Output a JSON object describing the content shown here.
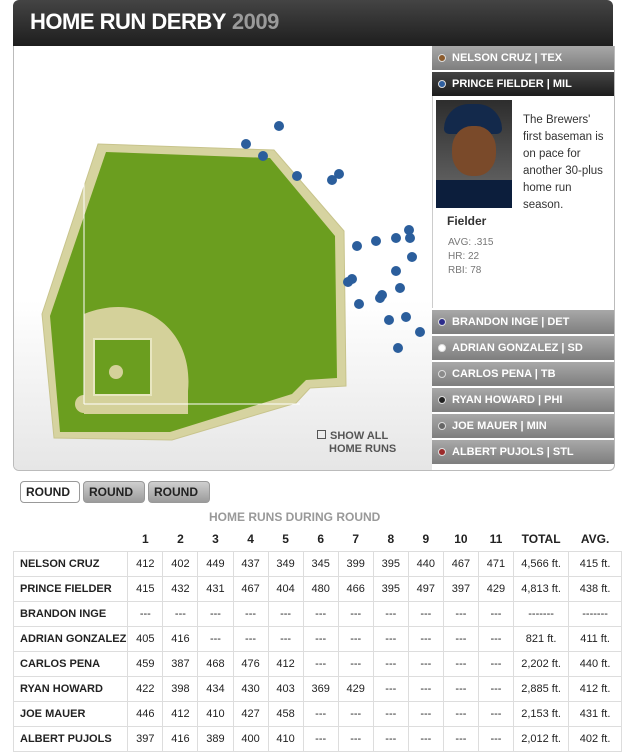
{
  "header": {
    "title": "HOME RUN DERBY",
    "year": "2009"
  },
  "show_all": {
    "line1": "SHOW ALL",
    "line2": "HOME RUNS"
  },
  "players": [
    {
      "label": "NELSON CRUZ  |  TEX",
      "color": "#8b5a2b",
      "active": false
    },
    {
      "label": "PRINCE FIELDER  |  MIL",
      "color": "#2f5f9f",
      "active": true
    },
    {
      "label": "BRANDON INGE  |  DET",
      "color": "#2c2c8c",
      "active": false
    },
    {
      "label": "ADRIAN GONZALEZ  |  SD",
      "color": "#ffffff",
      "active": false
    },
    {
      "label": "CARLOS PENA  |  TB",
      "color": "#8a8a8a",
      "active": false
    },
    {
      "label": "RYAN HOWARD  |  PHI",
      "color": "#222222",
      "active": false
    },
    {
      "label": "JOE MAUER  |  MIN",
      "color": "#666666",
      "active": false
    },
    {
      "label": "ALBERT PUJOLS  |  STL",
      "color": "#9c2a2a",
      "active": false
    }
  ],
  "selected_player": {
    "name": "Fielder",
    "avg": "AVG: .315",
    "hr": "HR: 22",
    "rbi": "RBI: 78",
    "description": "The Brewers' first baseman is on pace for another 30-plus home run season."
  },
  "rounds": [
    "ROUND",
    "ROUND",
    "ROUND"
  ],
  "colors": {
    "grass": "#6b9e1f",
    "dirt": "#d4d19a",
    "warning_track": "#d6d3a0",
    "hit_marker": "#2b5e9c"
  },
  "chart_data": {
    "type": "table",
    "title": "HOME RUNS DURING ROUND",
    "columns": [
      "1",
      "2",
      "3",
      "4",
      "5",
      "6",
      "7",
      "8",
      "9",
      "10",
      "11",
      "TOTAL",
      "AVG."
    ],
    "rows": [
      {
        "name": "NELSON CRUZ",
        "values": [
          "412",
          "402",
          "449",
          "437",
          "349",
          "345",
          "399",
          "395",
          "440",
          "467",
          "471",
          "4,566 ft.",
          "415 ft."
        ]
      },
      {
        "name": "PRINCE FIELDER",
        "values": [
          "415",
          "432",
          "431",
          "467",
          "404",
          "480",
          "466",
          "395",
          "497",
          "397",
          "429",
          "4,813 ft.",
          "438 ft."
        ]
      },
      {
        "name": "BRANDON INGE",
        "values": [
          "---",
          "---",
          "---",
          "---",
          "---",
          "---",
          "---",
          "---",
          "---",
          "---",
          "---",
          "-------",
          "-------"
        ]
      },
      {
        "name": "ADRIAN GONZALEZ",
        "values": [
          "405",
          "416",
          "---",
          "---",
          "---",
          "---",
          "---",
          "---",
          "---",
          "---",
          "---",
          "821 ft.",
          "411 ft."
        ]
      },
      {
        "name": "CARLOS PENA",
        "values": [
          "459",
          "387",
          "468",
          "476",
          "412",
          "---",
          "---",
          "---",
          "---",
          "---",
          "---",
          "2,202 ft.",
          "440 ft."
        ]
      },
      {
        "name": "RYAN HOWARD",
        "values": [
          "422",
          "398",
          "434",
          "430",
          "403",
          "369",
          "429",
          "---",
          "---",
          "---",
          "---",
          "2,885 ft.",
          "412 ft."
        ]
      },
      {
        "name": "JOE MAUER",
        "values": [
          "446",
          "412",
          "410",
          "427",
          "458",
          "---",
          "---",
          "---",
          "---",
          "---",
          "---",
          "2,153 ft.",
          "431 ft."
        ]
      },
      {
        "name": "ALBERT PUJOLS",
        "values": [
          "397",
          "416",
          "389",
          "400",
          "410",
          "---",
          "---",
          "---",
          "---",
          "---",
          "---",
          "2,012 ft.",
          "402 ft."
        ]
      }
    ]
  }
}
